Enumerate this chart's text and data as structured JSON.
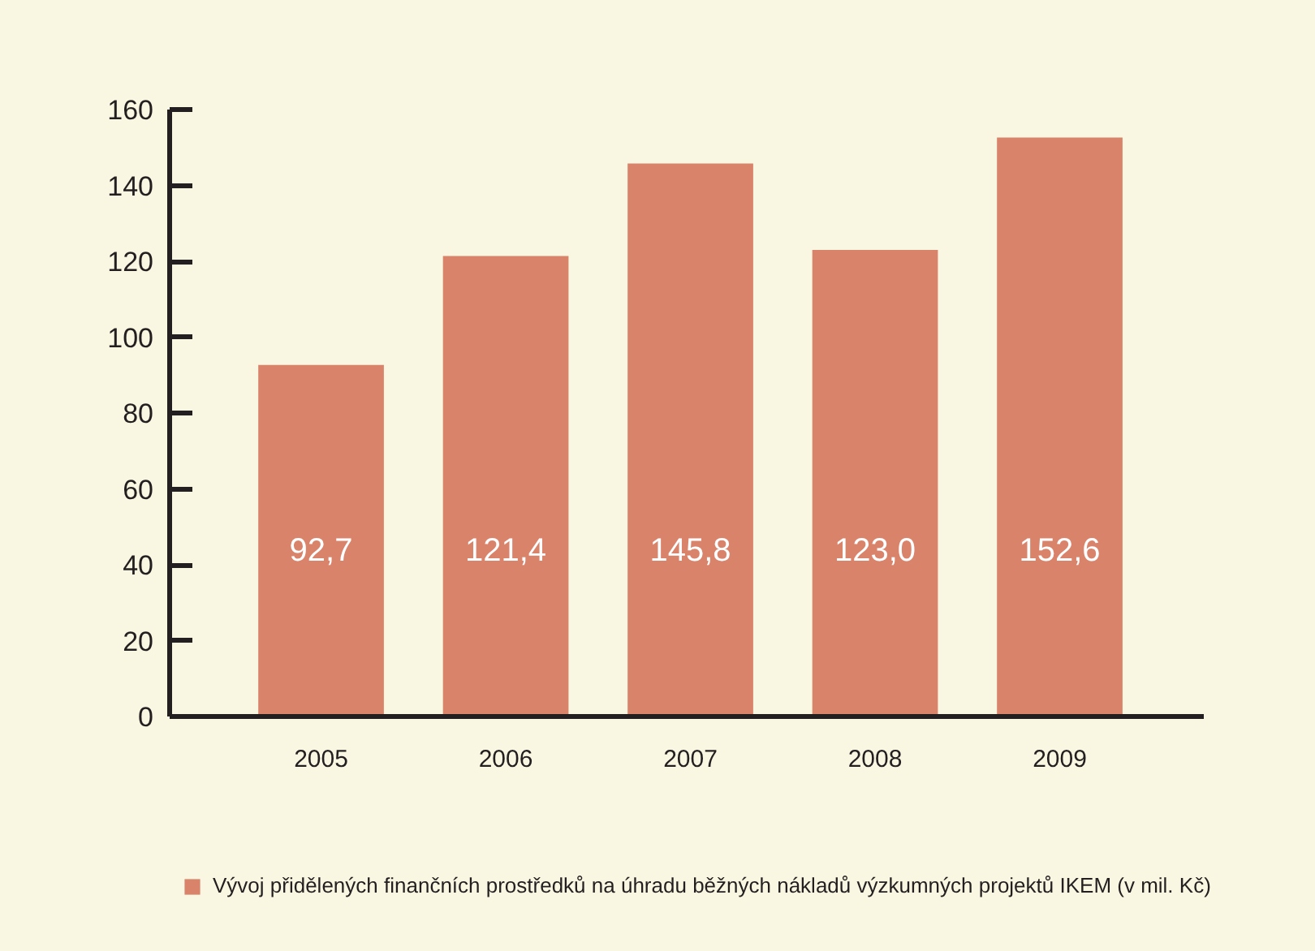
{
  "chart_data": {
    "type": "bar",
    "categories": [
      "2005",
      "2006",
      "2007",
      "2008",
      "2009"
    ],
    "series": [
      {
        "name": "Vývoj přidělených finančních prostředků na úhradu běžných nákladů výzkumných projektů IKEM (v mil. Kč)",
        "color": "#d9836b",
        "values": [
          92.7,
          121.4,
          145.8,
          123.0,
          152.6
        ],
        "value_labels": [
          "92,7",
          "121,4",
          "145,8",
          "123,0",
          "152,6"
        ]
      }
    ],
    "ylim": [
      0,
      160
    ],
    "yticks": [
      0,
      20,
      40,
      60,
      80,
      100,
      120,
      140,
      160
    ],
    "legend": "bottom"
  }
}
